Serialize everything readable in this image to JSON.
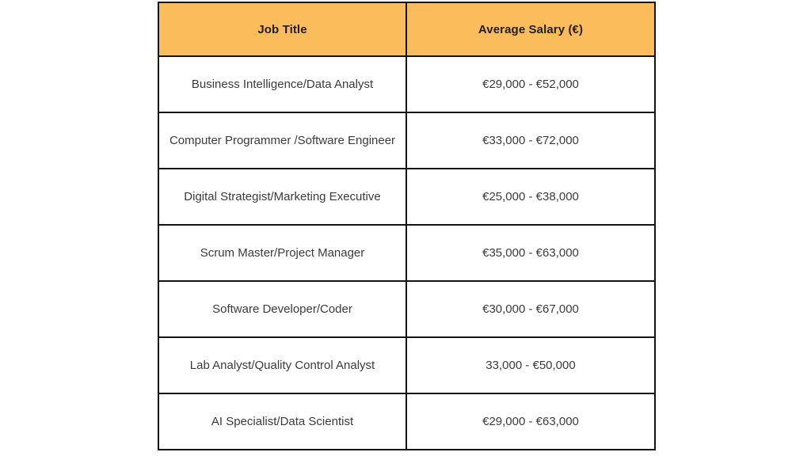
{
  "colors": {
    "header_background": "#FBBC5C",
    "border": "#141414",
    "header_text": "#1F1F1F",
    "body_text": "#3B3B3B",
    "page_background": "#FFFFFF"
  },
  "chart_data": {
    "type": "table",
    "title": "",
    "columns": [
      "Job Title",
      "Average Salary (€)"
    ],
    "rows": [
      [
        "Business Intelligence/Data Analyst",
        "€29,000 - €52,000"
      ],
      [
        "Computer Programmer /Software Engineer",
        "€33,000 - €72,000"
      ],
      [
        "Digital Strategist/Marketing Executive",
        "€25,000 - €38,000"
      ],
      [
        "Scrum Master/Project Manager",
        "€35,000 - €63,000"
      ],
      [
        "Software Developer/Coder",
        "€30,000 - €67,000"
      ],
      [
        "Lab Analyst/Quality Control Analyst",
        "33,000 - €50,000"
      ],
      [
        "AI Specialist/Data Scientist",
        "€29,000 - €63,000"
      ]
    ],
    "layout": {
      "header_style": "solid orange fill, bold dark text",
      "grid": "all borders, black, ~2px",
      "alignment": "all cells centered"
    }
  }
}
